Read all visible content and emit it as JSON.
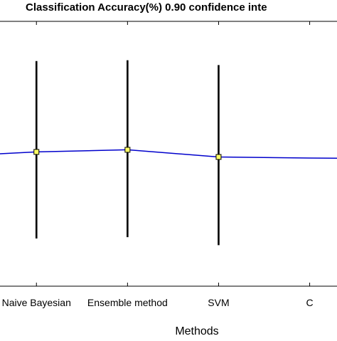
{
  "chart_data": {
    "type": "line",
    "title": "Classification Accuracy(%) 0.90 confidence inte",
    "xlabel": "Methods",
    "ylabel": "",
    "categories": [
      "",
      "Naive Bayesian",
      "Ensemble method",
      "SVM",
      "C"
    ],
    "xlim": [
      0.6,
      4.3
    ],
    "ylim": [
      0,
      1
    ],
    "grid": false,
    "series": [
      {
        "color": "#0000cc",
        "marker_color": "#ffff66",
        "points": [
          {
            "x": 0.6,
            "y": 0.5
          },
          {
            "x": 1,
            "y": 0.507,
            "lower": 0.18,
            "upper": 0.85,
            "marker": true
          },
          {
            "x": 2,
            "y": 0.515,
            "lower": 0.185,
            "upper": 0.853,
            "marker": true
          },
          {
            "x": 3,
            "y": 0.488,
            "lower": 0.155,
            "upper": 0.835,
            "marker": true
          },
          {
            "x": 4,
            "y": 0.484
          },
          {
            "x": 4.3,
            "y": 0.483
          }
        ]
      }
    ]
  }
}
